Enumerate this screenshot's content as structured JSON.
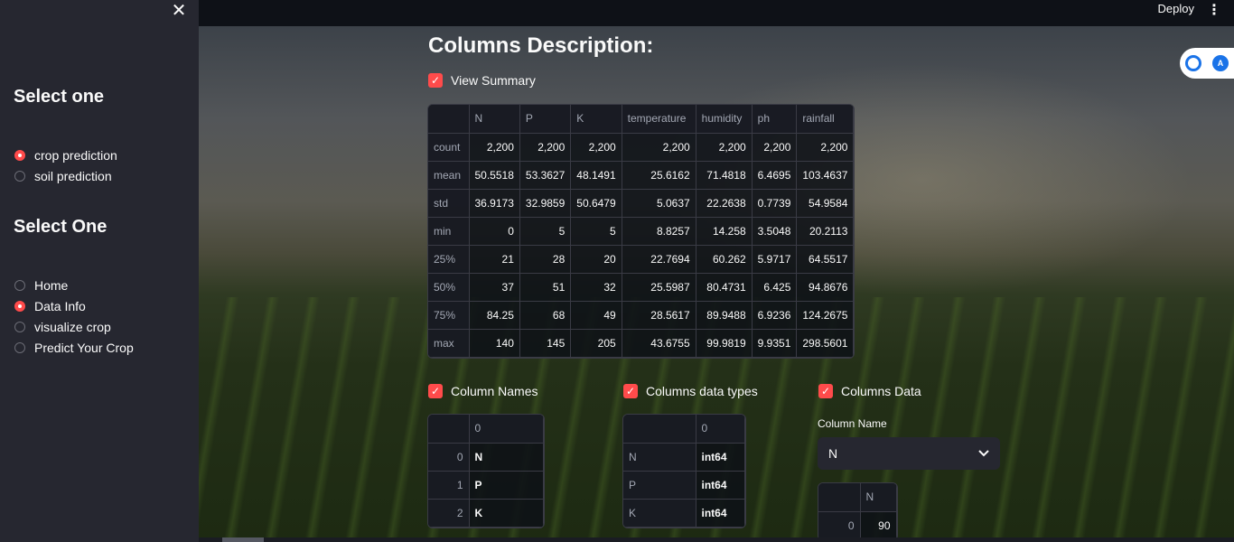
{
  "sidebar": {
    "close_glyph": "✕",
    "heading1": "Select one",
    "radio1": [
      {
        "label": "crop prediction",
        "selected": true
      },
      {
        "label": "soil prediction",
        "selected": false
      }
    ],
    "heading2": "Select One",
    "radio2": [
      {
        "label": "Home",
        "selected": false
      },
      {
        "label": "Data Info",
        "selected": true
      },
      {
        "label": "visualize crop",
        "selected": false
      },
      {
        "label": "Predict Your Crop",
        "selected": false
      }
    ]
  },
  "topbar": {
    "deploy_label": "Deploy",
    "menu_glyph": "⋮"
  },
  "main": {
    "title": "Columns Description:",
    "view_summary_label": "View Summary",
    "summary": {
      "columns": [
        "",
        "N",
        "P",
        "K",
        "temperature",
        "humidity",
        "ph",
        "rainfall"
      ],
      "rows": [
        [
          "count",
          "2,200",
          "2,200",
          "2,200",
          "2,200",
          "2,200",
          "2,200",
          "2,200"
        ],
        [
          "mean",
          "50.5518",
          "53.3627",
          "48.1491",
          "25.6162",
          "71.4818",
          "6.4695",
          "103.4637"
        ],
        [
          "std",
          "36.9173",
          "32.9859",
          "50.6479",
          "5.0637",
          "22.2638",
          "0.7739",
          "54.9584"
        ],
        [
          "min",
          "0",
          "5",
          "5",
          "8.8257",
          "14.258",
          "3.5048",
          "20.2113"
        ],
        [
          "25%",
          "21",
          "28",
          "20",
          "22.7694",
          "60.262",
          "5.9717",
          "64.5517"
        ],
        [
          "50%",
          "37",
          "51",
          "32",
          "25.5987",
          "80.4731",
          "6.425",
          "94.8676"
        ],
        [
          "75%",
          "84.25",
          "68",
          "49",
          "28.5617",
          "89.9488",
          "6.9236",
          "124.2675"
        ],
        [
          "max",
          "140",
          "145",
          "205",
          "43.6755",
          "99.9819",
          "9.9351",
          "298.5601"
        ]
      ]
    },
    "column_names_label": "Column Names",
    "column_names_table": {
      "columns": [
        "",
        "0"
      ],
      "rows": [
        [
          "0",
          "N"
        ],
        [
          "1",
          "P"
        ],
        [
          "2",
          "K"
        ]
      ]
    },
    "dtypes_label": "Columns data types",
    "dtypes_table": {
      "columns": [
        "",
        "0"
      ],
      "rows": [
        [
          "N",
          "int64"
        ],
        [
          "P",
          "int64"
        ],
        [
          "K",
          "int64"
        ]
      ]
    },
    "columns_data_label": "Columns Data",
    "column_name_field_label": "Column Name",
    "column_select_value": "N",
    "column_data_table": {
      "columns": [
        "",
        "N"
      ],
      "rows": [
        [
          "0",
          "90"
        ]
      ]
    }
  },
  "colors": {
    "accent": "#ff4b4b",
    "sidebar_bg": "#262730",
    "app_bg": "#0e1117"
  },
  "icons": {
    "close": "close-icon",
    "menu": "kebab-menu-icon",
    "checkbox": "check-icon",
    "dropdown": "chevron-down-icon"
  }
}
